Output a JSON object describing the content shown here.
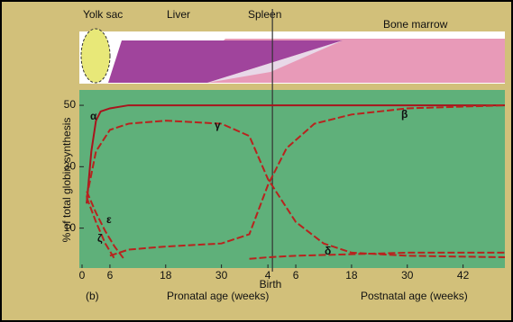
{
  "chart_data": {
    "type": "line",
    "panel_label": "(b)",
    "y_label": "% of total globin synthesis",
    "x_label_prenatal": "Pronatal age (weeks)",
    "x_label_postnatal": "Postnatal age (weeks)",
    "birth_label": "Birth",
    "organ_labels": [
      "Yolk sac",
      "Liver",
      "Spleen",
      "Bone marrow"
    ],
    "xlim": [
      0,
      91
    ],
    "xticks": [
      0,
      6,
      18,
      30,
      {
        "value": 40,
        "label": "4"
      },
      {
        "value": 46,
        "label": "6"
      },
      {
        "value": 58,
        "label": "18"
      },
      {
        "value": 70,
        "label": "30"
      },
      {
        "value": 82,
        "label": "42"
      }
    ],
    "ylim": [
      -3,
      55
    ],
    "yticks": [
      10,
      30,
      50
    ],
    "series": [
      {
        "name": "α",
        "color": "#a8141c",
        "dashed": false,
        "x": [
          1,
          2,
          3,
          4,
          6,
          10,
          20,
          40,
          60,
          91
        ],
        "values": [
          18,
          35,
          45,
          48,
          49,
          50,
          50,
          50,
          50,
          50
        ]
      },
      {
        "name": "γ",
        "color": "#b8231e",
        "dashed": true,
        "x": [
          1,
          3,
          6,
          10,
          18,
          30,
          36,
          40,
          46,
          52,
          58,
          70,
          91
        ],
        "values": [
          20,
          35,
          42,
          44,
          45,
          44,
          40,
          26,
          12,
          5,
          2,
          1,
          0.5
        ]
      },
      {
        "name": "β",
        "color": "#b8231e",
        "dashed": true,
        "x": [
          6,
          10,
          18,
          30,
          36,
          40,
          44,
          50,
          58,
          70,
          91
        ],
        "values": [
          1,
          3,
          4,
          5,
          8,
          24,
          36,
          44,
          47,
          49,
          50
        ]
      },
      {
        "name": "ε",
        "color": "#b8231e",
        "dashed": true,
        "x": [
          1,
          3,
          5,
          7,
          9
        ],
        "values": [
          22,
          15,
          9,
          4,
          0
        ]
      },
      {
        "name": "ζ",
        "color": "#b8231e",
        "dashed": true,
        "x": [
          1,
          3,
          5,
          7
        ],
        "values": [
          20,
          12,
          5,
          0
        ]
      },
      {
        "name": "δ",
        "color": "#b8231e",
        "dashed": true,
        "x": [
          36,
          40,
          46,
          58,
          70,
          91
        ],
        "values": [
          0,
          0.5,
          1,
          1.5,
          2,
          2
        ]
      }
    ]
  }
}
